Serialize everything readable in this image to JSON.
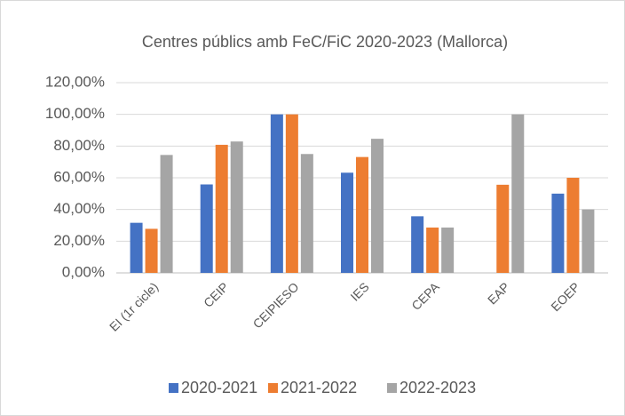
{
  "chart_data": {
    "type": "bar",
    "title": "Centres públics amb FeC/FiC 2020-2023 (Mallorca)",
    "categories": [
      "EI (1r cicle)",
      "CEIP",
      "CEIPIESO",
      "IES",
      "CEPA",
      "EAP",
      "EOEP"
    ],
    "series": [
      {
        "name": "2020-2021",
        "color": "#4472c4",
        "values": [
          31.6,
          55.8,
          100,
          63.2,
          35.7,
          0,
          50
        ]
      },
      {
        "name": "2021-2022",
        "color": "#ed7d31",
        "values": [
          27.8,
          80.8,
          100,
          73.1,
          28.6,
          55.6,
          60
        ]
      },
      {
        "name": "2022-2023",
        "color": "#a5a5a5",
        "values": [
          74.4,
          82.9,
          75,
          84.6,
          28.6,
          100,
          40
        ]
      }
    ],
    "ylim": [
      0,
      120
    ],
    "yticks": [
      {
        "value": 0,
        "label": "0,00%"
      },
      {
        "value": 20,
        "label": "20,00%"
      },
      {
        "value": 40,
        "label": "40,00%"
      },
      {
        "value": 60,
        "label": "60,00%"
      },
      {
        "value": 80,
        "label": "80,00%"
      },
      {
        "value": 100,
        "label": "100,00%"
      },
      {
        "value": 120,
        "label": "120,00%"
      }
    ],
    "grid": true,
    "legend": "bottom"
  }
}
